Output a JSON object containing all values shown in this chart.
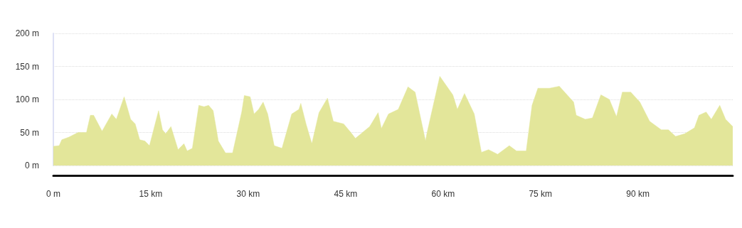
{
  "chart_data": {
    "type": "area",
    "color": "#e3e69a",
    "x": [
      0,
      0.9,
      1.3,
      2.4,
      3.8,
      5.1,
      5.7,
      6.2,
      7.5,
      9.0,
      9.7,
      10.9,
      11.9,
      12.6,
      13.3,
      14.1,
      14.8,
      16.2,
      16.8,
      17.3,
      18.1,
      19.2,
      20.1,
      20.6,
      21.4,
      22.4,
      23.2,
      23.9,
      24.6,
      25.4,
      26.5,
      27.6,
      29.0,
      29.4,
      30.3,
      30.9,
      31.6,
      32.3,
      33.0,
      34.0,
      35.2,
      36.7,
      37.8,
      38.1,
      38.9,
      39.8,
      40.9,
      42.2,
      43.1,
      44.7,
      45.8,
      46.5,
      48.7,
      50.0,
      50.5,
      51.6,
      53.1,
      54.6,
      55.7,
      57.3,
      57.5,
      59.5,
      61.5,
      62.2,
      63.3,
      64.8,
      65.9,
      67.0,
      68.4,
      70.2,
      71.3,
      72.8,
      73.7,
      74.6,
      76.4,
      77.9,
      80.1,
      80.5,
      81.9,
      83.0,
      84.3,
      85.6,
      86.7,
      87.6,
      88.9,
      90.3,
      91.8,
      93.6,
      94.7,
      95.8,
      97.2,
      98.7,
      99.4,
      100.5,
      101.3,
      102.6,
      103.5,
      104.6
    ],
    "values": [
      29,
      30,
      39,
      43,
      50,
      50,
      76,
      76,
      52,
      78,
      70,
      104,
      70,
      63,
      39,
      37,
      30,
      83,
      54,
      48,
      59,
      24,
      33,
      22,
      26,
      91,
      89,
      91,
      83,
      37,
      19,
      19,
      81,
      106,
      104,
      78,
      85,
      96,
      78,
      30,
      26,
      78,
      85,
      94,
      63,
      33,
      80,
      102,
      67,
      63,
      50,
      41,
      59,
      80,
      56,
      78,
      85,
      119,
      111,
      37,
      48,
      135,
      107,
      85,
      109,
      78,
      20,
      24,
      17,
      30,
      22,
      22,
      91,
      117,
      117,
      120,
      96,
      76,
      70,
      72,
      107,
      100,
      74,
      111,
      111,
      96,
      67,
      54,
      54,
      44,
      48,
      57,
      76,
      81,
      70,
      91,
      70,
      59
    ],
    "xlim": [
      0,
      104.6
    ],
    "xticks": [
      {
        "value": 0,
        "label": "0 m"
      },
      {
        "value": 15,
        "label": "15 km"
      },
      {
        "value": 30,
        "label": "30 km"
      },
      {
        "value": 45,
        "label": "45 km"
      },
      {
        "value": 60,
        "label": "60 km"
      },
      {
        "value": 75,
        "label": "75 km"
      },
      {
        "value": 90,
        "label": "90 km"
      }
    ],
    "ylim": [
      0,
      200
    ],
    "yticks": [
      {
        "value": 0,
        "label": "0 m"
      },
      {
        "value": 50,
        "label": "50 m"
      },
      {
        "value": 100,
        "label": "100 m"
      },
      {
        "value": 150,
        "label": "150 m"
      },
      {
        "value": 200,
        "label": "200 m"
      }
    ],
    "grid": "y",
    "marker": "none"
  }
}
